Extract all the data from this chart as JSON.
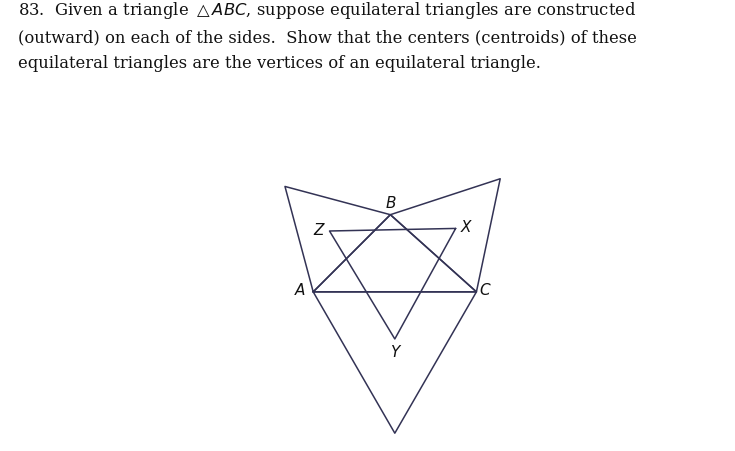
{
  "background_color": "#ffffff",
  "line_color": "#333355",
  "line_width": 1.1,
  "text_color": "#111111",
  "title_lines": [
    "83.  Given a triangle $\\triangle ABC$, suppose equilateral triangles are constructed",
    "(outward) on each of the sides.  Show that the centers (centroids) of these",
    "equilateral triangles are the vertices of an equilateral triangle."
  ],
  "title_fontsize": 11.8,
  "label_fontsize": 11,
  "fig_width": 7.35,
  "fig_height": 4.51,
  "A": [
    0.0,
    0.0
  ],
  "B": [
    0.52,
    0.52
  ],
  "C": [
    1.1,
    0.0
  ]
}
